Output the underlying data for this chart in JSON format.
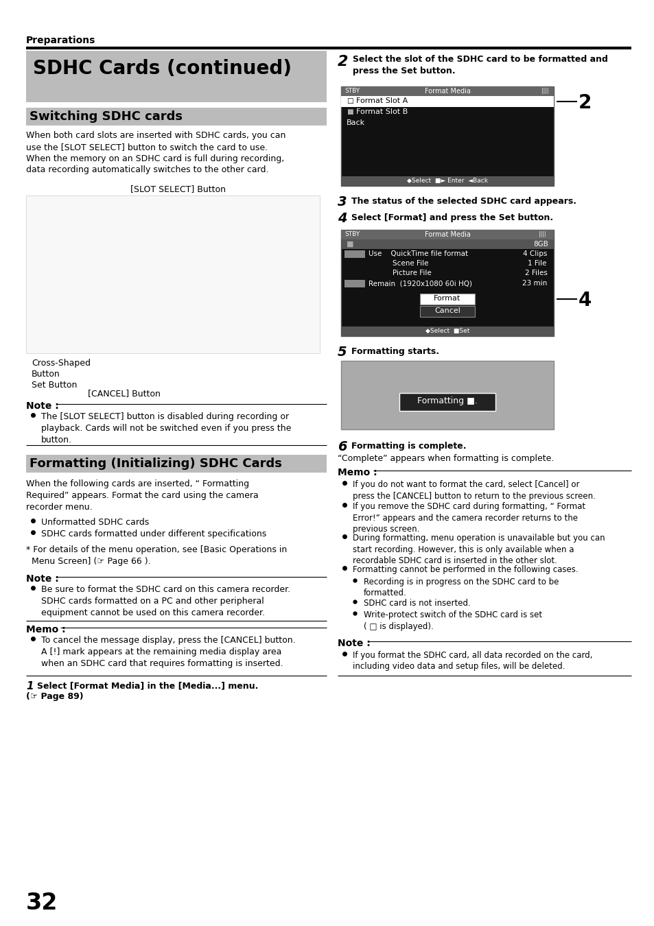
{
  "page_bg": "#ffffff",
  "header_text": "Preparations",
  "title_text": "SDHC Cards (continued)",
  "section1_title": "Switching SDHC cards",
  "section1_body": "When both card slots are inserted with SDHC cards, you can\nuse the [SLOT SELECT] button to switch the card to use.\nWhen the memory on an SDHC card is full during recording,\ndata recording automatically switches to the other card.",
  "slot_select_label": "[SLOT SELECT] Button",
  "cross_shaped_label": "Cross-Shaped\nButton",
  "set_button_label": "Set Button",
  "cancel_button_label": "[CANCEL] Button",
  "note1_title": "Note :",
  "note1_body": "The [SLOT SELECT] button is disabled during recording or\nplayback. Cards will not be switched even if you press the\nbutton.",
  "section2_title": "Formatting (Initializing) SDHC Cards",
  "section2_body": "When the following cards are inserted, “ Formatting\nRequired” appears. Format the card using the camera\nrecorder menu.",
  "section2_bullets": [
    "Unformatted SDHC cards",
    "SDHC cards formatted under different specifications"
  ],
  "section2_note": "* For details of the menu operation, see [Basic Operations in\n  Menu Screen] (☞ Page 66 ).",
  "note2_title": "Note :",
  "note2_body": "Be sure to format the SDHC card on this camera recorder.\nSDHC cards formatted on a PC and other peripheral\nequipment cannot be used on this camera recorder.",
  "memo1_title": "Memo :",
  "memo1_body": "To cancel the message display, press the [CANCEL] button.\nA [!] mark appears at the remaining media display area\nwhen an SDHC card that requires formatting is inserted.",
  "step1_num": "1",
  "step1_text": "Select [Format Media] in the [Media...] menu.",
  "step1_ref": "(☞ Page 89)",
  "step2_num": "2",
  "step2_text": "Select the slot of the SDHC card to be formatted and\npress the Set button.",
  "step3_num": "3",
  "step3_text": "The status of the selected SDHC card appears.",
  "step4_num": "4",
  "step4_text": "Select [Format] and press the Set button.",
  "step5_num": "5",
  "step5_text": "Formatting starts.",
  "step6_num": "6",
  "step6_text": "Formatting is complete.",
  "complete_text": "“Complete” appears when formatting is complete.",
  "memo2_title": "Memo :",
  "memo2_bullets": [
    "If you do not want to format the card, select [Cancel] or\npress the [CANCEL] button to return to the previous screen.",
    "If you remove the SDHC card during formatting, “ Format\nError!” appears and the camera recorder returns to the\nprevious screen.",
    "During formatting, menu operation is unavailable but you can\nstart recording. However, this is only available when a\nrecordable SDHC card is inserted in the other slot.",
    "Formatting cannot be performed in the following cases."
  ],
  "memo2_sub_bullets": [
    "Recording is in progress on the SDHC card to be\nformatted.",
    "SDHC card is not inserted.",
    "Write-protect switch of the SDHC card is set\n( □ is displayed)."
  ],
  "note3_title": "Note :",
  "note3_body": "If you format the SDHC card, all data recorded on the card,\nincluding video data and setup files, will be deleted.",
  "page_number": "32",
  "screen1_title": "Format Media",
  "screen2_title": "Format Media",
  "screen3_text": "Formatting ■."
}
